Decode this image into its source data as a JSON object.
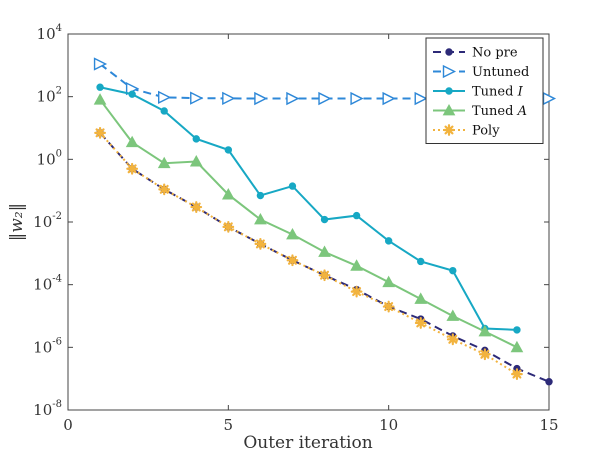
{
  "chart_data": {
    "type": "line",
    "xlabel": "Outer iteration",
    "ylabel": "‖w₂‖",
    "xlim": [
      0,
      15
    ],
    "ylim": [
      1e-08,
      10000.0
    ],
    "yscale": "log",
    "xticks": [
      0,
      5,
      10,
      15
    ],
    "xtick_labels": [
      "0",
      "5",
      "10",
      "15"
    ],
    "yticks": [
      1e-08,
      1e-06,
      0.0001,
      0.01,
      1,
      100,
      10000.0
    ],
    "ytick_labels": [
      {
        "base": "10",
        "exp": "-8"
      },
      {
        "base": "10",
        "exp": "-6"
      },
      {
        "base": "10",
        "exp": "-4"
      },
      {
        "base": "10",
        "exp": "-2"
      },
      {
        "base": "10",
        "exp": "0"
      },
      {
        "base": "10",
        "exp": "2"
      },
      {
        "base": "10",
        "exp": "4"
      }
    ],
    "grid": false,
    "legend_position": "top-right",
    "series": [
      {
        "name": "No pre",
        "color": "#2d2a78",
        "dash": "8,5",
        "marker": "circle",
        "x": [
          1,
          2,
          3,
          4,
          5,
          6,
          7,
          8,
          9,
          10,
          11,
          12,
          13,
          14,
          15
        ],
        "y": [
          7,
          0.5,
          0.11,
          0.03,
          0.007,
          0.002,
          0.0006,
          0.0002,
          7e-05,
          2e-05,
          8e-06,
          2.3e-06,
          8e-07,
          2.1e-07,
          8e-08
        ]
      },
      {
        "name": "Untuned",
        "color": "#2e88d8",
        "dash": "8,5",
        "marker": "triangle-right",
        "x": [
          1,
          2,
          3,
          4,
          5,
          6,
          7,
          8,
          9,
          10,
          11,
          12,
          13,
          14,
          15
        ],
        "y": [
          1100,
          180,
          95,
          90,
          88,
          87,
          87,
          87,
          87,
          87,
          87,
          87,
          87,
          87,
          87
        ]
      },
      {
        "name": "Tuned I",
        "label_prefix": "Tuned ",
        "label_math": "I",
        "color": "#17a8c4",
        "dash": "",
        "marker": "circle",
        "x": [
          1,
          2,
          3,
          4,
          5,
          6,
          7,
          8,
          9,
          10,
          11,
          12,
          13,
          14
        ],
        "y": [
          200,
          120,
          35,
          4.5,
          2,
          0.07,
          0.14,
          0.012,
          0.016,
          0.0025,
          0.00055,
          0.00028,
          4e-06,
          3.6e-06
        ]
      },
      {
        "name": "Tuned A",
        "label_prefix": "Tuned ",
        "label_math": "A",
        "color": "#7cc67c",
        "dash": "",
        "marker": "triangle-up",
        "x": [
          1,
          2,
          3,
          4,
          5,
          6,
          7,
          8,
          9,
          10,
          11,
          12,
          13,
          14
        ],
        "y": [
          80,
          3.5,
          0.75,
          0.85,
          0.075,
          0.012,
          0.004,
          0.0011,
          0.0004,
          0.00012,
          3.5e-05,
          1e-05,
          3.2e-06,
          1e-06
        ]
      },
      {
        "name": "Poly",
        "color": "#f2b33e",
        "dash": "2,3",
        "marker": "asterisk",
        "x": [
          1,
          2,
          3,
          4,
          5,
          6,
          7,
          8,
          9,
          10,
          11,
          12,
          13,
          14
        ],
        "y": [
          7,
          0.5,
          0.11,
          0.03,
          0.007,
          0.002,
          0.0006,
          0.0002,
          6e-05,
          2e-05,
          6e-06,
          1.8e-06,
          6e-07,
          1.4e-07
        ]
      }
    ]
  }
}
